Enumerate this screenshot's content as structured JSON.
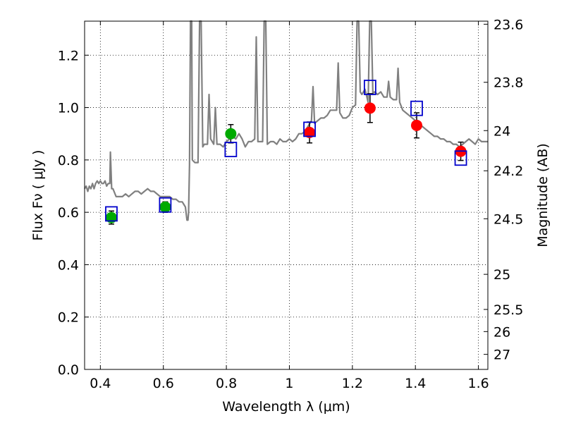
{
  "chart_data": {
    "type": "scatter",
    "xlabel": "Wavelength  λ (μm)",
    "ylabel_left": "Flux  Fν  ( μJy )",
    "ylabel_right": "Magnitude (AB)",
    "xlim": [
      0.35,
      1.63
    ],
    "ylim": [
      0.0,
      1.33
    ],
    "grid": true,
    "x_ticks": [
      0.4,
      0.6,
      0.8,
      1.0,
      1.2,
      1.4,
      1.6
    ],
    "x_tick_labels": [
      "0.4",
      "0.6",
      "0.8",
      "1",
      "1.2",
      "1.4",
      "1.6"
    ],
    "y_ticks": [
      0.0,
      0.2,
      0.4,
      0.6,
      0.8,
      1.0,
      1.2
    ],
    "y_tick_labels": [
      "0.0",
      "0.2",
      "0.4",
      "0.6",
      "0.8",
      "1.0",
      "1.2"
    ],
    "right_ticks": [
      {
        "label": "23.6",
        "flux": 1.3183
      },
      {
        "label": "23.8",
        "flux": 1.0965
      },
      {
        "label": "24",
        "flux": 0.912
      },
      {
        "label": "24.2",
        "flux": 0.7586
      },
      {
        "label": "24.5",
        "flux": 0.5754
      },
      {
        "label": "25",
        "flux": 0.3631
      },
      {
        "label": "25.5",
        "flux": 0.2291
      },
      {
        "label": "26",
        "flux": 0.1445
      },
      {
        "label": "27",
        "flux": 0.0575
      }
    ],
    "colors": {
      "sed": "#808080",
      "ground_points": "#00aa00",
      "nir_points": "#ff0000",
      "model_boxes": "#0000cc",
      "grid": "#b0b0b0"
    },
    "sed_model": [
      [
        0.35,
        0.69
      ],
      [
        0.355,
        0.7
      ],
      [
        0.36,
        0.68
      ],
      [
        0.365,
        0.7
      ],
      [
        0.37,
        0.69
      ],
      [
        0.375,
        0.71
      ],
      [
        0.38,
        0.69
      ],
      [
        0.385,
        0.71
      ],
      [
        0.39,
        0.72
      ],
      [
        0.395,
        0.71
      ],
      [
        0.4,
        0.72
      ],
      [
        0.405,
        0.71
      ],
      [
        0.41,
        0.71
      ],
      [
        0.415,
        0.72
      ],
      [
        0.42,
        0.7
      ],
      [
        0.425,
        0.71
      ],
      [
        0.43,
        0.71
      ],
      [
        0.432,
        0.83
      ],
      [
        0.434,
        0.76
      ],
      [
        0.436,
        0.69
      ],
      [
        0.44,
        0.69
      ],
      [
        0.45,
        0.66
      ],
      [
        0.46,
        0.66
      ],
      [
        0.47,
        0.66
      ],
      [
        0.48,
        0.67
      ],
      [
        0.49,
        0.66
      ],
      [
        0.5,
        0.67
      ],
      [
        0.51,
        0.68
      ],
      [
        0.52,
        0.68
      ],
      [
        0.53,
        0.67
      ],
      [
        0.54,
        0.68
      ],
      [
        0.55,
        0.69
      ],
      [
        0.56,
        0.68
      ],
      [
        0.57,
        0.68
      ],
      [
        0.58,
        0.67
      ],
      [
        0.59,
        0.66
      ],
      [
        0.6,
        0.66
      ],
      [
        0.62,
        0.66
      ],
      [
        0.63,
        0.65
      ],
      [
        0.64,
        0.65
      ],
      [
        0.65,
        0.64
      ],
      [
        0.66,
        0.64
      ],
      [
        0.665,
        0.63
      ],
      [
        0.67,
        0.62
      ],
      [
        0.675,
        0.57
      ],
      [
        0.678,
        0.57
      ],
      [
        0.68,
        0.6
      ],
      [
        0.683,
        0.78
      ],
      [
        0.686,
        1.33
      ],
      [
        0.69,
        1.33
      ],
      [
        0.692,
        0.8
      ],
      [
        0.7,
        0.79
      ],
      [
        0.71,
        0.79
      ],
      [
        0.715,
        1.33
      ],
      [
        0.72,
        1.33
      ],
      [
        0.725,
        0.85
      ],
      [
        0.73,
        0.86
      ],
      [
        0.74,
        0.86
      ],
      [
        0.745,
        1.05
      ],
      [
        0.75,
        0.88
      ],
      [
        0.76,
        0.86
      ],
      [
        0.765,
        1.0
      ],
      [
        0.77,
        0.86
      ],
      [
        0.78,
        0.86
      ],
      [
        0.79,
        0.85
      ],
      [
        0.8,
        0.87
      ],
      [
        0.81,
        0.88
      ],
      [
        0.82,
        0.89
      ],
      [
        0.83,
        0.88
      ],
      [
        0.84,
        0.9
      ],
      [
        0.85,
        0.88
      ],
      [
        0.86,
        0.85
      ],
      [
        0.87,
        0.87
      ],
      [
        0.88,
        0.87
      ],
      [
        0.89,
        0.88
      ],
      [
        0.895,
        1.27
      ],
      [
        0.9,
        0.87
      ],
      [
        0.91,
        0.87
      ],
      [
        0.915,
        0.87
      ],
      [
        0.92,
        1.33
      ],
      [
        0.925,
        1.33
      ],
      [
        0.93,
        0.86
      ],
      [
        0.94,
        0.87
      ],
      [
        0.95,
        0.87
      ],
      [
        0.96,
        0.86
      ],
      [
        0.97,
        0.88
      ],
      [
        0.98,
        0.87
      ],
      [
        0.99,
        0.87
      ],
      [
        1.0,
        0.88
      ],
      [
        1.01,
        0.87
      ],
      [
        1.02,
        0.88
      ],
      [
        1.03,
        0.9
      ],
      [
        1.04,
        0.9
      ],
      [
        1.05,
        0.91
      ],
      [
        1.06,
        0.93
      ],
      [
        1.07,
        0.95
      ],
      [
        1.075,
        1.08
      ],
      [
        1.08,
        0.94
      ],
      [
        1.09,
        0.95
      ],
      [
        1.1,
        0.96
      ],
      [
        1.11,
        0.96
      ],
      [
        1.12,
        0.97
      ],
      [
        1.13,
        0.99
      ],
      [
        1.14,
        0.99
      ],
      [
        1.15,
        0.99
      ],
      [
        1.155,
        1.17
      ],
      [
        1.16,
        0.98
      ],
      [
        1.17,
        0.96
      ],
      [
        1.18,
        0.96
      ],
      [
        1.19,
        0.97
      ],
      [
        1.2,
        1.0
      ],
      [
        1.21,
        1.01
      ],
      [
        1.215,
        1.33
      ],
      [
        1.22,
        1.33
      ],
      [
        1.225,
        1.06
      ],
      [
        1.23,
        1.05
      ],
      [
        1.24,
        1.07
      ],
      [
        1.25,
        1.02
      ],
      [
        1.255,
        1.33
      ],
      [
        1.26,
        1.33
      ],
      [
        1.265,
        1.05
      ],
      [
        1.27,
        1.06
      ],
      [
        1.28,
        1.05
      ],
      [
        1.29,
        1.06
      ],
      [
        1.3,
        1.04
      ],
      [
        1.31,
        1.04
      ],
      [
        1.315,
        1.1
      ],
      [
        1.32,
        1.04
      ],
      [
        1.33,
        1.03
      ],
      [
        1.34,
        1.03
      ],
      [
        1.345,
        1.15
      ],
      [
        1.35,
        1.02
      ],
      [
        1.36,
        0.99
      ],
      [
        1.37,
        0.98
      ],
      [
        1.38,
        0.97
      ],
      [
        1.39,
        0.96
      ],
      [
        1.4,
        0.95
      ],
      [
        1.41,
        0.94
      ],
      [
        1.42,
        0.93
      ],
      [
        1.43,
        0.92
      ],
      [
        1.44,
        0.91
      ],
      [
        1.45,
        0.9
      ],
      [
        1.46,
        0.89
      ],
      [
        1.47,
        0.89
      ],
      [
        1.48,
        0.88
      ],
      [
        1.49,
        0.88
      ],
      [
        1.5,
        0.87
      ],
      [
        1.51,
        0.87
      ],
      [
        1.52,
        0.86
      ],
      [
        1.53,
        0.86
      ],
      [
        1.54,
        0.85
      ],
      [
        1.55,
        0.86
      ],
      [
        1.56,
        0.87
      ],
      [
        1.57,
        0.88
      ],
      [
        1.58,
        0.87
      ],
      [
        1.59,
        0.86
      ],
      [
        1.6,
        0.88
      ],
      [
        1.61,
        0.87
      ],
      [
        1.62,
        0.87
      ],
      [
        1.63,
        0.87
      ]
    ],
    "series": [
      {
        "marker": "circle",
        "color": "#00aa00",
        "points": [
          {
            "x": 0.435,
            "y": 0.58,
            "err": 0.025
          },
          {
            "x": 0.606,
            "y": 0.62,
            "err": 0.02
          },
          {
            "x": 0.814,
            "y": 0.9,
            "err": 0.035
          }
        ]
      },
      {
        "marker": "circle",
        "color": "#ff0000",
        "points": [
          {
            "x": 1.064,
            "y": 0.905,
            "err": 0.04
          },
          {
            "x": 1.256,
            "y": 0.998,
            "err": 0.055
          },
          {
            "x": 1.404,
            "y": 0.932,
            "err": 0.048
          },
          {
            "x": 1.544,
            "y": 0.833,
            "err": 0.035
          }
        ]
      },
      {
        "marker": "square-open",
        "color": "#0000cc",
        "points": [
          {
            "x": 0.435,
            "y": 0.594
          },
          {
            "x": 0.606,
            "y": 0.628
          },
          {
            "x": 0.814,
            "y": 0.84
          },
          {
            "x": 1.064,
            "y": 0.917
          },
          {
            "x": 1.256,
            "y": 1.077
          },
          {
            "x": 1.404,
            "y": 0.997
          },
          {
            "x": 1.544,
            "y": 0.807
          }
        ]
      }
    ]
  }
}
